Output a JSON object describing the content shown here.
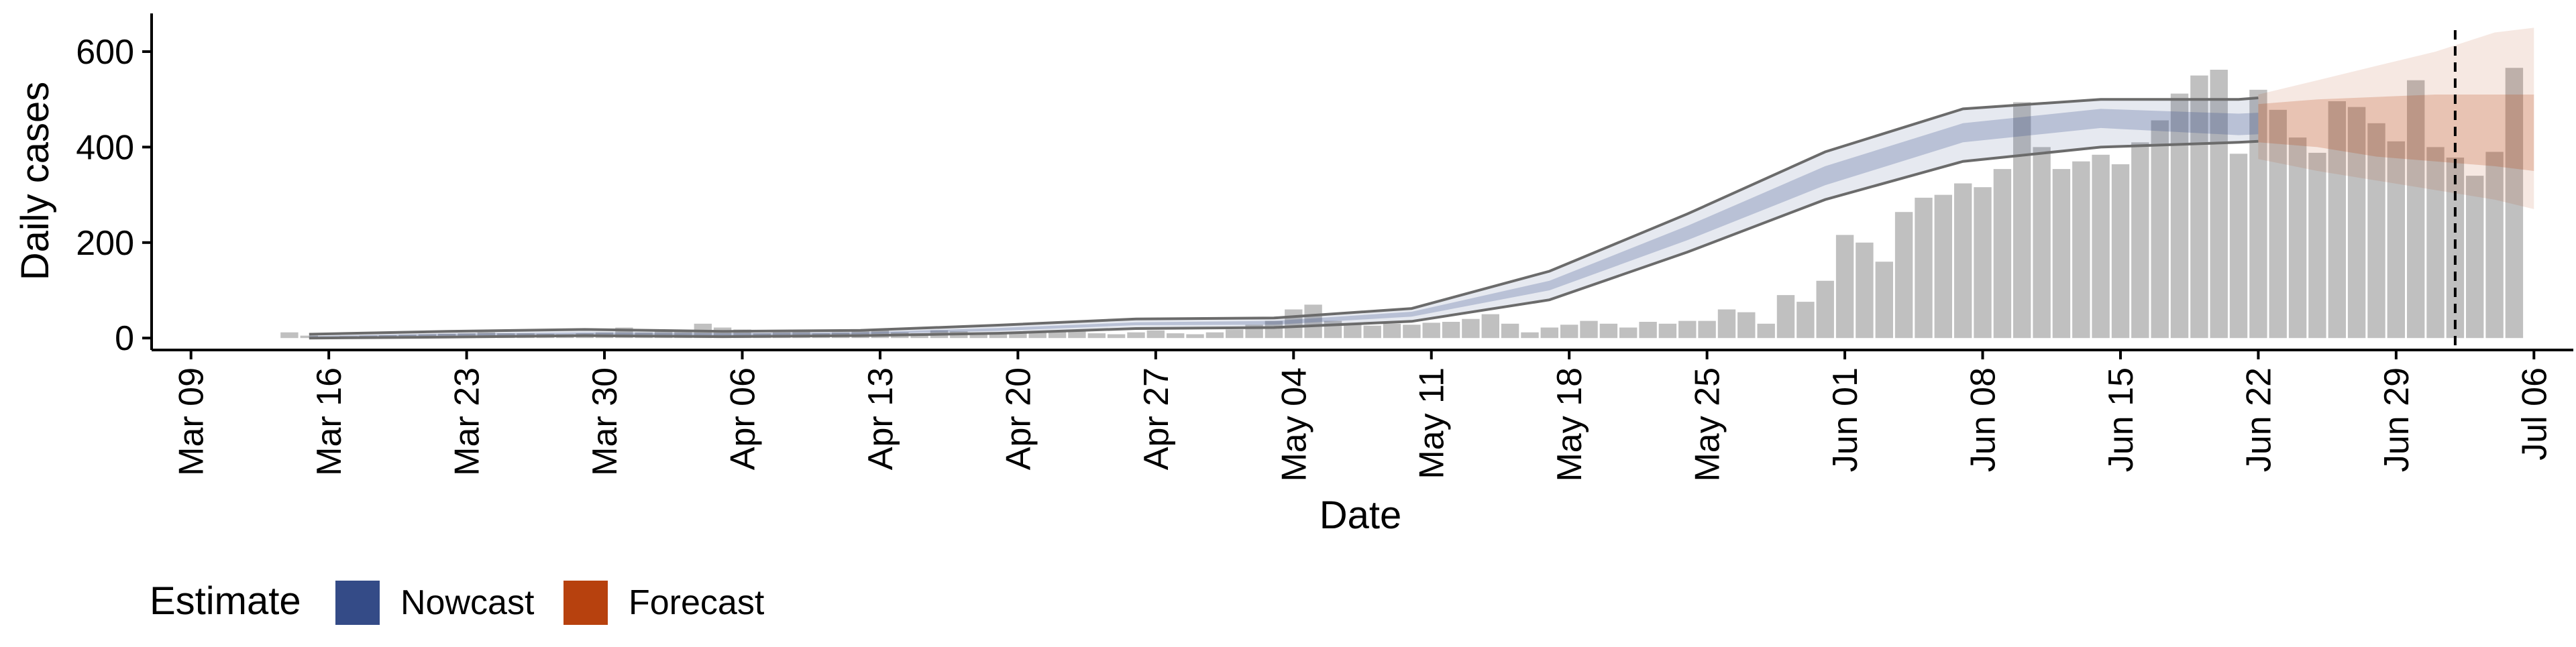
{
  "chart_data": {
    "type": "bar",
    "xlabel": "Date",
    "ylabel": "Daily cases",
    "ylim": [
      -25,
      680
    ],
    "y_ticks": [
      0,
      200,
      400,
      600
    ],
    "x_range": [
      "2020-03-07",
      "2020-07-08"
    ],
    "x_ticks": [
      {
        "date": "2020-03-09",
        "label": "Mar 09"
      },
      {
        "date": "2020-03-16",
        "label": "Mar 16"
      },
      {
        "date": "2020-03-23",
        "label": "Mar 23"
      },
      {
        "date": "2020-03-30",
        "label": "Mar 30"
      },
      {
        "date": "2020-04-06",
        "label": "Apr 06"
      },
      {
        "date": "2020-04-13",
        "label": "Apr 13"
      },
      {
        "date": "2020-04-20",
        "label": "Apr 20"
      },
      {
        "date": "2020-04-27",
        "label": "Apr 27"
      },
      {
        "date": "2020-05-04",
        "label": "May 04"
      },
      {
        "date": "2020-05-11",
        "label": "May 11"
      },
      {
        "date": "2020-05-18",
        "label": "May 18"
      },
      {
        "date": "2020-05-25",
        "label": "May 25"
      },
      {
        "date": "2020-06-01",
        "label": "Jun 01"
      },
      {
        "date": "2020-06-08",
        "label": "Jun 08"
      },
      {
        "date": "2020-06-15",
        "label": "Jun 15"
      },
      {
        "date": "2020-06-22",
        "label": "Jun 22"
      },
      {
        "date": "2020-06-29",
        "label": "Jun 29"
      },
      {
        "date": "2020-07-06",
        "label": "Jul 06"
      }
    ],
    "grid": false,
    "bars": {
      "start_date": "2020-03-14",
      "values": [
        12,
        5,
        3,
        4,
        5,
        6,
        7,
        8,
        9,
        10,
        12,
        10,
        10,
        9,
        8,
        10,
        12,
        22,
        12,
        14,
        16,
        30,
        22,
        18,
        10,
        12,
        14,
        10,
        12,
        14,
        16,
        12,
        10,
        16,
        14,
        10,
        8,
        10,
        12,
        14,
        16,
        10,
        8,
        12,
        16,
        10,
        8,
        12,
        18,
        28,
        36,
        60,
        70,
        36,
        30,
        26,
        30,
        28,
        32,
        34,
        40,
        50,
        30,
        12,
        22,
        28,
        36,
        30,
        22,
        34,
        30,
        36,
        36,
        60,
        54,
        30,
        90,
        76,
        120,
        216,
        200,
        160,
        264,
        294,
        300,
        324,
        316,
        354,
        494,
        400,
        354,
        370,
        384,
        364,
        410,
        456,
        512,
        550,
        562,
        386,
        520,
        478,
        420,
        388,
        496,
        484,
        450,
        412,
        540,
        400,
        378,
        340,
        390,
        566
      ],
      "color": "#bdbdbd"
    },
    "nowcast": {
      "start_date": "2020-03-15",
      "end_date": "2020-06-22",
      "x": [
        "2020-03-15",
        "2020-03-22",
        "2020-03-29",
        "2020-04-05",
        "2020-04-12",
        "2020-04-19",
        "2020-04-26",
        "2020-05-03",
        "2020-05-10",
        "2020-05-17",
        "2020-05-24",
        "2020-05-31",
        "2020-06-07",
        "2020-06-14",
        "2020-06-21",
        "2020-06-22"
      ],
      "median": [
        3,
        7,
        10,
        8,
        10,
        18,
        30,
        32,
        50,
        110,
        220,
        340,
        430,
        460,
        448,
        450
      ],
      "inner_lower": [
        2,
        5,
        8,
        6,
        8,
        15,
        27,
        28,
        45,
        100,
        205,
        320,
        410,
        440,
        425,
        427
      ],
      "inner_upper": [
        4,
        9,
        12,
        10,
        12,
        21,
        33,
        36,
        55,
        120,
        235,
        360,
        450,
        480,
        470,
        472
      ],
      "outer_lower": [
        0,
        2,
        5,
        3,
        5,
        10,
        20,
        22,
        35,
        80,
        180,
        290,
        370,
        400,
        410,
        412
      ],
      "outer_upper": [
        8,
        14,
        18,
        14,
        16,
        27,
        40,
        42,
        62,
        140,
        260,
        390,
        480,
        500,
        500,
        503
      ],
      "color": "#344b87"
    },
    "forecast": {
      "x": [
        "2020-06-22",
        "2020-06-25",
        "2020-06-28",
        "2020-07-01",
        "2020-07-04",
        "2020-07-06"
      ],
      "median": [
        450,
        455,
        440,
        440,
        450,
        455
      ],
      "inner_lower": [
        410,
        400,
        380,
        370,
        360,
        350
      ],
      "inner_upper": [
        490,
        500,
        505,
        510,
        510,
        510
      ],
      "outer_lower": [
        375,
        350,
        330,
        310,
        290,
        270
      ],
      "outer_upper": [
        510,
        540,
        570,
        600,
        640,
        650
      ],
      "color": "#b7410e"
    },
    "vline": {
      "date": "2020-07-02",
      "style": "dashed"
    },
    "legend": {
      "title": "Estimate",
      "position": "bottom-left",
      "items": [
        {
          "label": "Nowcast",
          "color": "#344b87"
        },
        {
          "label": "Forecast",
          "color": "#b7410e"
        }
      ]
    }
  }
}
